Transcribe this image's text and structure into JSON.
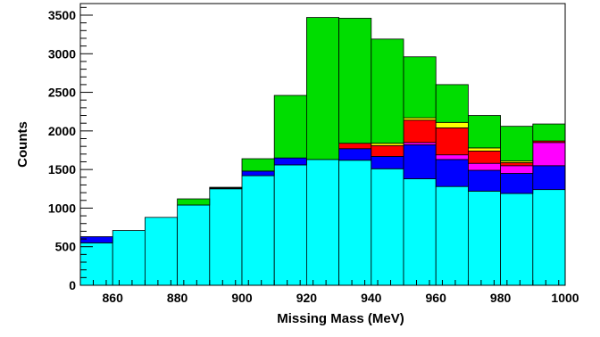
{
  "chart_data": {
    "type": "area",
    "style": "stacked-step-histogram",
    "xlabel": "Missing Mass (MeV)",
    "ylabel": "Counts",
    "xlim": [
      850,
      1000
    ],
    "ylim": [
      0,
      3650
    ],
    "xticks": [
      860,
      880,
      900,
      920,
      940,
      960,
      980,
      1000
    ],
    "yticks": [
      0,
      500,
      1000,
      1500,
      2000,
      2500,
      3000,
      3500
    ],
    "grid": false,
    "legend": "none",
    "bin_edges": [
      850,
      860,
      870,
      880,
      890,
      900,
      910,
      920,
      930,
      940,
      950,
      960,
      970,
      980,
      990,
      1000
    ],
    "series": [
      {
        "color": "#00ffff",
        "values": [
          550,
          710,
          880,
          1040,
          1250,
          1420,
          1560,
          1630,
          1620,
          1510,
          1380,
          1280,
          1220,
          1190,
          1240
        ]
      },
      {
        "color": "#0000ff",
        "values": [
          80,
          0,
          0,
          0,
          10,
          60,
          90,
          0,
          150,
          160,
          440,
          350,
          270,
          260,
          310
        ]
      },
      {
        "color": "#ff00ff",
        "values": [
          0,
          0,
          0,
          0,
          0,
          0,
          0,
          0,
          0,
          0,
          30,
          60,
          90,
          100,
          300
        ]
      },
      {
        "color": "#ff0000",
        "values": [
          0,
          0,
          0,
          0,
          0,
          0,
          0,
          0,
          70,
          140,
          290,
          350,
          160,
          40,
          20
        ]
      },
      {
        "color": "#ffff00",
        "values": [
          0,
          0,
          0,
          0,
          0,
          0,
          0,
          0,
          0,
          30,
          30,
          70,
          40,
          20,
          0
        ]
      },
      {
        "color": "#00dd00",
        "values": [
          0,
          0,
          0,
          80,
          10,
          160,
          810,
          1840,
          1620,
          1350,
          790,
          490,
          420,
          450,
          220
        ]
      }
    ]
  }
}
